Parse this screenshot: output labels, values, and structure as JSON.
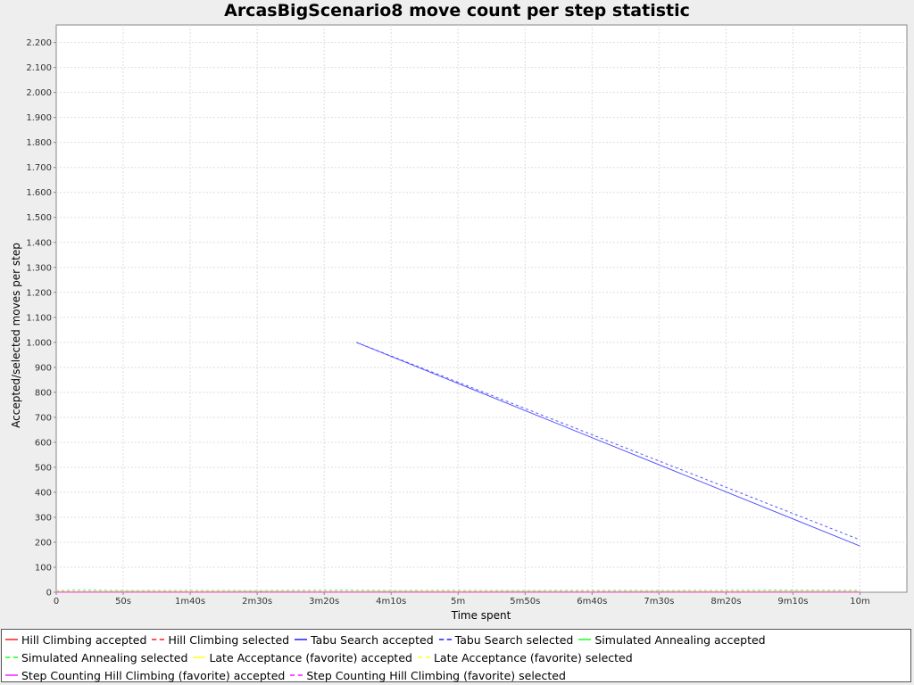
{
  "chart_data": {
    "type": "line",
    "title": "ArcasBigScenario8 move count per step statistic",
    "xlabel": "Time spent",
    "ylabel": "Accepted/selected moves per step",
    "xlim": [
      0,
      635
    ],
    "ylim": [
      0,
      2270
    ],
    "x_unit": "seconds",
    "xticks": [
      {
        "value": 0,
        "label": "0"
      },
      {
        "value": 50,
        "label": "50s"
      },
      {
        "value": 100,
        "label": "1m40s"
      },
      {
        "value": 150,
        "label": "2m30s"
      },
      {
        "value": 200,
        "label": "3m20s"
      },
      {
        "value": 250,
        "label": "4m10s"
      },
      {
        "value": 300,
        "label": "5m"
      },
      {
        "value": 350,
        "label": "5m50s"
      },
      {
        "value": 400,
        "label": "6m40s"
      },
      {
        "value": 450,
        "label": "7m30s"
      },
      {
        "value": 500,
        "label": "8m20s"
      },
      {
        "value": 550,
        "label": "9m10s"
      },
      {
        "value": 600,
        "label": "10m"
      }
    ],
    "yticks": [
      {
        "value": 0,
        "label": "0"
      },
      {
        "value": 100,
        "label": "100"
      },
      {
        "value": 200,
        "label": "200"
      },
      {
        "value": 300,
        "label": "300"
      },
      {
        "value": 400,
        "label": "400"
      },
      {
        "value": 500,
        "label": "500"
      },
      {
        "value": 600,
        "label": "600"
      },
      {
        "value": 700,
        "label": "700"
      },
      {
        "value": 800,
        "label": "800"
      },
      {
        "value": 900,
        "label": "900"
      },
      {
        "value": 1000,
        "label": "1.000"
      },
      {
        "value": 1100,
        "label": "1.100"
      },
      {
        "value": 1200,
        "label": "1.200"
      },
      {
        "value": 1300,
        "label": "1.300"
      },
      {
        "value": 1400,
        "label": "1.400"
      },
      {
        "value": 1500,
        "label": "1.500"
      },
      {
        "value": 1600,
        "label": "1.600"
      },
      {
        "value": 1700,
        "label": "1.700"
      },
      {
        "value": 1800,
        "label": "1.800"
      },
      {
        "value": 1900,
        "label": "1.900"
      },
      {
        "value": 2000,
        "label": "2.000"
      },
      {
        "value": 2100,
        "label": "2.100"
      },
      {
        "value": 2200,
        "label": "2.200"
      }
    ],
    "grid": true,
    "legend_position": "bottom",
    "series": [
      {
        "name": "Hill Climbing accepted",
        "color": "#ff5555",
        "dashed": false,
        "x": [
          0,
          100,
          200,
          300,
          400,
          500,
          600
        ],
        "y": [
          1,
          1,
          1,
          1,
          1,
          1,
          1
        ]
      },
      {
        "name": "Hill Climbing selected",
        "color": "#ff5555",
        "dashed": true,
        "x": [
          0,
          100,
          200,
          300,
          400,
          500,
          600
        ],
        "y": [
          2,
          2,
          2,
          2,
          2,
          2,
          2
        ]
      },
      {
        "name": "Tabu Search accepted",
        "color": "#5555ff",
        "dashed": false,
        "x": [
          224,
          600
        ],
        "y": [
          1000,
          185
        ]
      },
      {
        "name": "Tabu Search selected",
        "color": "#5555ff",
        "dashed": true,
        "x": [
          224,
          600
        ],
        "y": [
          1000,
          210
        ]
      },
      {
        "name": "Simulated Annealing accepted",
        "color": "#55ff55",
        "dashed": false,
        "x": [
          0,
          50,
          100,
          150,
          200,
          250,
          300,
          350,
          400,
          450,
          500,
          550,
          600
        ],
        "y": [
          3,
          4,
          3,
          4,
          3,
          4,
          3,
          4,
          3,
          4,
          3,
          4,
          3
        ]
      },
      {
        "name": "Simulated Annealing selected",
        "color": "#55ff55",
        "dashed": true,
        "x": [
          0,
          15,
          50,
          100,
          150,
          216,
          250,
          282,
          300,
          350,
          400,
          450,
          500,
          535,
          600
        ],
        "y": [
          6,
          10,
          7,
          8,
          7,
          9,
          7,
          8,
          8,
          7,
          8,
          7,
          8,
          9,
          8
        ]
      },
      {
        "name": "Late Acceptance (favorite) accepted",
        "color": "#ffff55",
        "dashed": false,
        "x": [
          0,
          100,
          200,
          300,
          400,
          500,
          600
        ],
        "y": [
          2,
          2,
          2,
          2,
          2,
          2,
          2
        ]
      },
      {
        "name": "Late Acceptance (favorite) selected",
        "color": "#ffff55",
        "dashed": true,
        "x": [
          0,
          100,
          200,
          300,
          400,
          500,
          600
        ],
        "y": [
          4,
          5,
          4,
          5,
          4,
          5,
          4
        ]
      },
      {
        "name": "Step Counting Hill Climbing (favorite) accepted",
        "color": "#ff55ff",
        "dashed": false,
        "x": [
          0,
          100,
          200,
          300,
          400,
          500,
          600
        ],
        "y": [
          1,
          1,
          1,
          1,
          1,
          1,
          1
        ]
      },
      {
        "name": "Step Counting Hill Climbing (favorite) selected",
        "color": "#ff55ff",
        "dashed": true,
        "x": [
          0,
          100,
          200,
          300,
          400,
          500,
          600
        ],
        "y": [
          2,
          2,
          2,
          2,
          2,
          2,
          2
        ]
      }
    ]
  }
}
